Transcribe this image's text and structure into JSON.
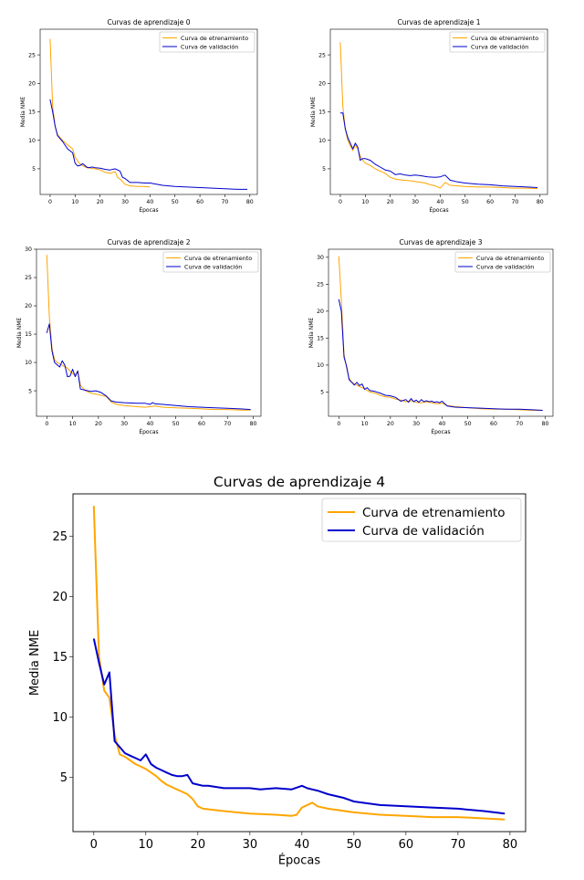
{
  "chart_data": [
    {
      "type": "line",
      "title": "Curvas de aprendizaje 0",
      "xlabel": "Épocas",
      "ylabel": "Media NME",
      "xlim": [
        -4,
        83
      ],
      "ylim": [
        0.5,
        29.5
      ],
      "xticks": [
        0,
        10,
        20,
        30,
        40,
        50,
        60,
        70,
        80
      ],
      "yticks": [
        5,
        10,
        15,
        20,
        25
      ],
      "legend": "top-right",
      "grid": false,
      "series": [
        {
          "name": "Curva de etrenamiento",
          "color": "#ffa500",
          "x": [
            0,
            1,
            2,
            3,
            5,
            7,
            9,
            10,
            12,
            14,
            16,
            18,
            20,
            22,
            24,
            26,
            27,
            28,
            30,
            32,
            35,
            38,
            40
          ],
          "y": [
            27.8,
            16,
            12.5,
            11,
            10,
            9.2,
            8.5,
            7,
            5.8,
            5.3,
            5.1,
            5.0,
            4.8,
            4.4,
            4.2,
            4.5,
            3.5,
            3.2,
            2.3,
            2.0,
            1.9,
            1.9,
            1.8
          ]
        },
        {
          "name": "Curva de validación",
          "color": "#0000cc",
          "x": [
            0,
            1,
            2,
            3,
            5,
            7,
            9,
            10,
            11,
            12,
            13,
            15,
            17,
            18,
            20,
            22,
            24,
            26,
            28,
            29,
            30,
            32,
            35,
            38,
            40,
            45,
            50,
            55,
            60,
            65,
            70,
            75,
            79
          ],
          "y": [
            17.2,
            15,
            12.5,
            10.8,
            9.8,
            8.5,
            7.8,
            6,
            5.5,
            5.6,
            5.9,
            5.2,
            5.3,
            5.2,
            5.1,
            4.9,
            4.8,
            5.0,
            4.6,
            3.5,
            3.3,
            2.6,
            2.6,
            2.5,
            2.5,
            2.1,
            1.9,
            1.8,
            1.7,
            1.6,
            1.5,
            1.4,
            1.4
          ]
        }
      ]
    },
    {
      "type": "line",
      "title": "Curvas de aprendizaje 1",
      "xlabel": "Épocas",
      "ylabel": "Media NME",
      "xlim": [
        -4,
        83
      ],
      "ylim": [
        0.5,
        29.5
      ],
      "xticks": [
        0,
        10,
        20,
        30,
        40,
        50,
        60,
        70,
        80
      ],
      "yticks": [
        5,
        10,
        15,
        20,
        25
      ],
      "legend": "top-right",
      "grid": false,
      "series": [
        {
          "name": "Curva de etrenamiento",
          "color": "#ffa500",
          "x": [
            0,
            1,
            2,
            3,
            4,
            5,
            6,
            7,
            8,
            9,
            10,
            12,
            14,
            16,
            18,
            20,
            22,
            25,
            28,
            31,
            34,
            36,
            38,
            40,
            42,
            44,
            47,
            50,
            55,
            60,
            65,
            70,
            75,
            79
          ],
          "y": [
            27.2,
            16,
            12,
            10,
            9,
            8.2,
            9.2,
            8.5,
            7.2,
            6.5,
            6.0,
            5.6,
            5.0,
            4.6,
            4.2,
            3.5,
            3.2,
            3.0,
            2.9,
            2.7,
            2.5,
            2.2,
            2.0,
            1.6,
            2.6,
            2.1,
            2.0,
            1.9,
            1.8,
            1.8,
            1.7,
            1.6,
            1.6,
            1.5
          ]
        },
        {
          "name": "Curva de validación",
          "color": "#0000cc",
          "x": [
            0,
            1,
            2,
            3,
            5,
            6,
            7,
            8,
            9,
            10,
            12,
            14,
            16,
            18,
            20,
            22,
            24,
            26,
            28,
            30,
            32,
            35,
            38,
            40,
            42,
            44,
            47,
            50,
            55,
            60,
            65,
            70,
            75,
            79
          ],
          "y": [
            14.8,
            14.8,
            12,
            10.5,
            8.5,
            9.5,
            8.8,
            6.5,
            6.8,
            6.8,
            6.5,
            5.8,
            5.3,
            4.8,
            4.6,
            4.0,
            4.1,
            3.9,
            3.8,
            3.9,
            3.8,
            3.6,
            3.5,
            3.6,
            3.9,
            3.0,
            2.7,
            2.5,
            2.3,
            2.2,
            2.0,
            1.9,
            1.8,
            1.7
          ]
        }
      ]
    },
    {
      "type": "line",
      "title": "Curvas de aprendizaje 2",
      "xlabel": "Épocas",
      "ylabel": "Media NME",
      "xlim": [
        -4,
        83
      ],
      "ylim": [
        0.5,
        30
      ],
      "xticks": [
        0,
        10,
        20,
        30,
        40,
        50,
        60,
        70,
        80
      ],
      "yticks": [
        5,
        10,
        15,
        20,
        25,
        30
      ],
      "legend": "top-right",
      "grid": false,
      "series": [
        {
          "name": "Curva de etrenamiento",
          "color": "#ffa500",
          "x": [
            0,
            1,
            2,
            3,
            4,
            6,
            8,
            9,
            10,
            11,
            12,
            13,
            15,
            17,
            19,
            21,
            23,
            25,
            27,
            30,
            35,
            38,
            40,
            42,
            45,
            50,
            55,
            60,
            65,
            70,
            75,
            79
          ],
          "y": [
            29,
            18,
            12.5,
            10.5,
            10,
            9.5,
            9,
            8.5,
            8,
            7.8,
            8.5,
            6,
            5,
            4.6,
            4.4,
            4.2,
            4,
            3,
            2.6,
            2.4,
            2.2,
            2.1,
            2.2,
            2.3,
            2.1,
            2.0,
            1.9,
            1.8,
            1.7,
            1.7,
            1.6,
            1.6
          ]
        },
        {
          "name": "Curva de validación",
          "color": "#0000cc",
          "x": [
            0,
            1,
            2,
            3,
            5,
            6,
            7,
            8,
            9,
            10,
            11,
            12,
            13,
            15,
            17,
            19,
            21,
            23,
            25,
            27,
            30,
            35,
            38,
            40,
            41,
            42,
            45,
            50,
            55,
            60,
            65,
            70,
            75,
            79
          ],
          "y": [
            15.2,
            16.8,
            12,
            10,
            9.2,
            10.3,
            9.5,
            7.5,
            7.6,
            8.8,
            7.5,
            8.5,
            5.3,
            5.1,
            4.9,
            5.0,
            4.7,
            4.1,
            3.2,
            3.0,
            2.9,
            2.8,
            2.8,
            2.6,
            2.9,
            2.7,
            2.6,
            2.4,
            2.2,
            2.1,
            2.0,
            1.9,
            1.8,
            1.7
          ]
        }
      ]
    },
    {
      "type": "line",
      "title": "Curvas de aprendizaje 3",
      "xlabel": "Épocas",
      "ylabel": "Media NME",
      "xlim": [
        -4,
        83
      ],
      "ylim": [
        0.5,
        31.5
      ],
      "xticks": [
        0,
        10,
        20,
        30,
        40,
        50,
        60,
        70,
        80
      ],
      "yticks": [
        5,
        10,
        15,
        20,
        25,
        30
      ],
      "legend": "top-right",
      "grid": false,
      "series": [
        {
          "name": "Curva de etrenamiento",
          "color": "#ffa500",
          "x": [
            0,
            1,
            2,
            3,
            4,
            5,
            6,
            7,
            8,
            9,
            10,
            12,
            14,
            16,
            18,
            20,
            22,
            24,
            26,
            28,
            30,
            32,
            34,
            36,
            38,
            40,
            42,
            45,
            50,
            55,
            60,
            65,
            70,
            75,
            79
          ],
          "y": [
            30.2,
            22,
            12,
            9.5,
            7.5,
            6.9,
            6.5,
            6.3,
            6.0,
            5.8,
            5.6,
            5.0,
            4.8,
            4.4,
            4.1,
            4.0,
            3.7,
            3.5,
            3.2,
            3.4,
            3.1,
            3.0,
            3.2,
            3.0,
            2.8,
            2.9,
            2.5,
            2.3,
            2.1,
            1.9,
            1.8,
            1.8,
            1.7,
            1.6,
            1.6
          ]
        },
        {
          "name": "Curva de validación",
          "color": "#0000cc",
          "x": [
            0,
            1,
            2,
            3,
            4,
            5,
            6,
            7,
            8,
            9,
            10,
            11,
            12,
            14,
            16,
            18,
            20,
            22,
            24,
            26,
            27,
            28,
            29,
            30,
            31,
            32,
            33,
            34,
            35,
            36,
            37,
            38,
            39,
            40,
            42,
            45,
            50,
            55,
            60,
            65,
            70,
            75,
            79
          ],
          "y": [
            22.2,
            20,
            11.5,
            9.8,
            7.3,
            6.8,
            6.3,
            6.8,
            6.2,
            6.5,
            5.5,
            5.8,
            5.3,
            5.1,
            4.8,
            4.4,
            4.3,
            4.0,
            3.3,
            3.6,
            3.1,
            3.8,
            3.2,
            3.5,
            3.1,
            3.6,
            3.2,
            3.4,
            3.2,
            3.3,
            3.1,
            3.2,
            3.0,
            3.3,
            2.4,
            2.2,
            2.1,
            2.0,
            1.9,
            1.8,
            1.8,
            1.7,
            1.6
          ]
        }
      ]
    },
    {
      "type": "line",
      "title": "Curvas de aprendizaje 4",
      "xlabel": "Épocas",
      "ylabel": "Media NME",
      "xlim": [
        -4,
        83
      ],
      "ylim": [
        0.5,
        28.5
      ],
      "xticks": [
        0,
        10,
        20,
        30,
        40,
        50,
        60,
        70,
        80
      ],
      "yticks": [
        5,
        10,
        15,
        20,
        25
      ],
      "legend": "top-right",
      "grid": false,
      "series": [
        {
          "name": "Curva de etrenamiento",
          "color": "#ffa500",
          "x": [
            0,
            1,
            2,
            3,
            4,
            5,
            6,
            7,
            8,
            9,
            10,
            11,
            12,
            13,
            14,
            15,
            16,
            17,
            18,
            19,
            20,
            21,
            25,
            30,
            35,
            38,
            39,
            40,
            42,
            43,
            45,
            50,
            55,
            60,
            65,
            70,
            75,
            79
          ],
          "y": [
            27.5,
            15,
            12.2,
            11.6,
            8.5,
            6.9,
            6.7,
            6.4,
            6.1,
            5.9,
            5.7,
            5.4,
            5.1,
            4.7,
            4.4,
            4.2,
            4.0,
            3.8,
            3.6,
            3.2,
            2.6,
            2.4,
            2.2,
            2.0,
            1.9,
            1.8,
            1.9,
            2.5,
            2.9,
            2.6,
            2.4,
            2.1,
            1.9,
            1.8,
            1.7,
            1.7,
            1.6,
            1.5
          ]
        },
        {
          "name": "Curva de validación",
          "color": "#0000cc",
          "x": [
            0,
            1,
            2,
            3,
            4,
            5,
            6,
            7,
            8,
            9,
            10,
            11,
            12,
            13,
            14,
            15,
            16,
            17,
            18,
            19,
            20,
            21,
            22,
            25,
            30,
            32,
            35,
            38,
            40,
            41,
            42,
            43,
            45,
            48,
            50,
            55,
            60,
            65,
            70,
            75,
            79
          ],
          "y": [
            16.5,
            14.5,
            12.7,
            13.7,
            8.0,
            7.5,
            7.0,
            6.8,
            6.6,
            6.4,
            6.9,
            6.1,
            5.8,
            5.6,
            5.4,
            5.2,
            5.1,
            5.1,
            5.2,
            4.5,
            4.4,
            4.3,
            4.3,
            4.1,
            4.1,
            4.0,
            4.1,
            4.0,
            4.3,
            4.1,
            4.0,
            3.9,
            3.6,
            3.3,
            3.0,
            2.7,
            2.6,
            2.5,
            2.4,
            2.2,
            2.0
          ]
        }
      ]
    }
  ]
}
